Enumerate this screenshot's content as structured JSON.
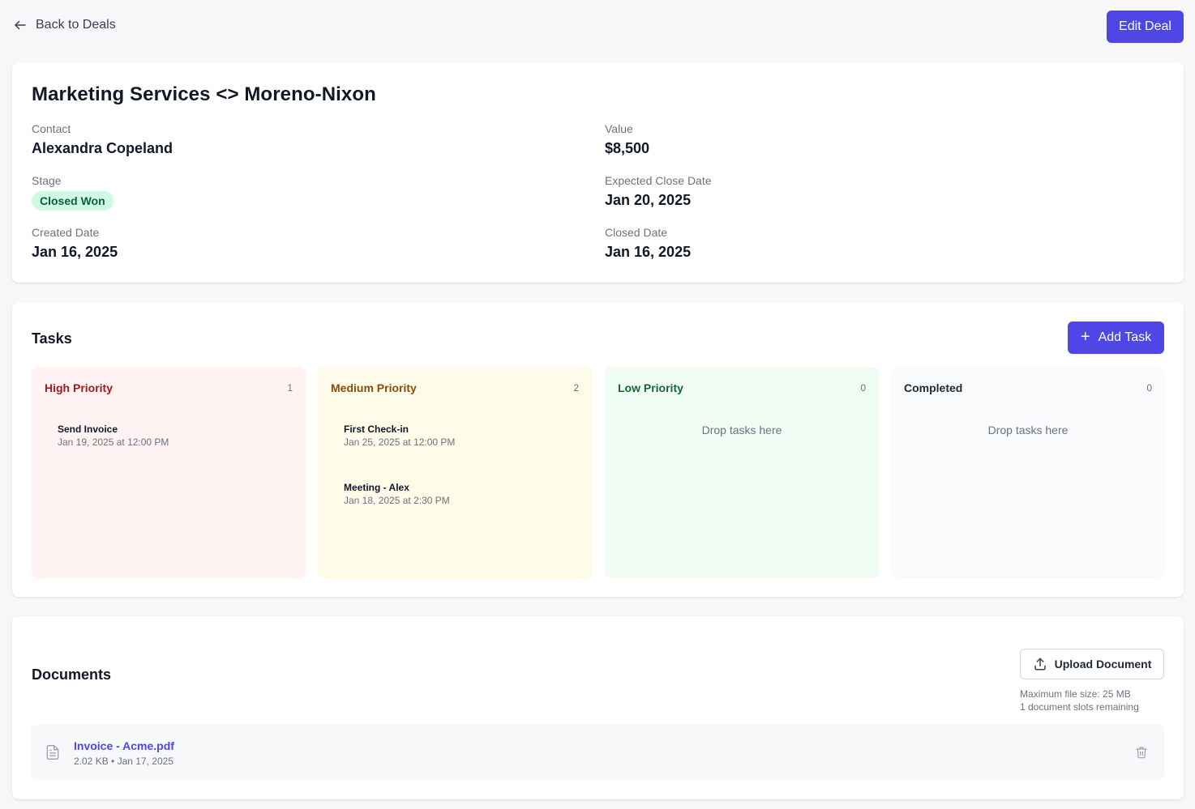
{
  "header": {
    "back_label": "Back to Deals",
    "edit_label": "Edit Deal"
  },
  "deal": {
    "title": "Marketing Services <> Moreno-Nixon",
    "contact_label": "Contact",
    "contact_value": "Alexandra Copeland",
    "value_label": "Value",
    "value_value": "$8,500",
    "stage_label": "Stage",
    "stage_value": "Closed Won",
    "expected_close_label": "Expected Close Date",
    "expected_close_value": "Jan 20, 2025",
    "created_label": "Created Date",
    "created_value": "Jan 16, 2025",
    "closed_label": "Closed Date",
    "closed_value": "Jan 16, 2025"
  },
  "tasks": {
    "title": "Tasks",
    "add_label": "Add Task",
    "columns": [
      {
        "title": "High Priority",
        "count": "1",
        "bg": "#fef2f2",
        "color": "#991b1b",
        "items": [
          {
            "title": "Send Invoice",
            "date": "Jan 19, 2025 at 12:00 PM"
          }
        ]
      },
      {
        "title": "Medium Priority",
        "count": "2",
        "bg": "#fefce8",
        "color": "#854d0e",
        "items": [
          {
            "title": "First Check-in",
            "date": "Jan 25, 2025 at 12:00 PM"
          },
          {
            "title": "Meeting - Alex",
            "date": "Jan 18, 2025 at 2:30 PM"
          }
        ]
      },
      {
        "title": "Low Priority",
        "count": "0",
        "bg": "#f0fdf4",
        "color": "#166534",
        "drop_hint": "Drop tasks here"
      },
      {
        "title": "Completed",
        "count": "0",
        "bg": "#f9fafb",
        "color": "#1f2937",
        "drop_hint": "Drop tasks here"
      }
    ]
  },
  "documents": {
    "title": "Documents",
    "upload_label": "Upload Document",
    "max_size": "Maximum file size: 25 MB",
    "slots_remaining": "1 document slots remaining",
    "files": [
      {
        "name": "Invoice - Acme.pdf",
        "meta": "2.02 KB • Jan 17, 2025"
      }
    ]
  },
  "colors": {
    "accent": "#4f46e5",
    "stage_badge_bg": "#d1fae5",
    "stage_badge_text": "#065f46"
  },
  "icons": [
    "arrow-left-icon",
    "plus-icon",
    "upload-icon",
    "file-text-icon",
    "trash-icon"
  ]
}
